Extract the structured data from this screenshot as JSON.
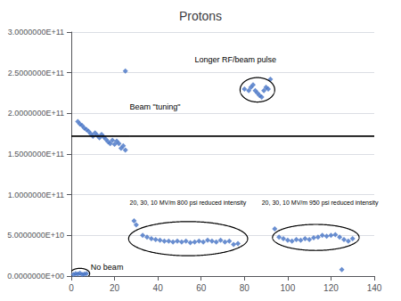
{
  "chart_data": {
    "type": "scatter",
    "title": "Protons",
    "color": "#4472C4",
    "marker": "diamond",
    "grid": true,
    "xlim": [
      0,
      140
    ],
    "ylim": [
      0,
      300000000000.0
    ],
    "xticks": [
      0,
      20,
      40,
      60,
      80,
      100,
      120,
      140
    ],
    "yticks": [
      {
        "value": 0.0,
        "label": "0.0000000E+00"
      },
      {
        "value": 50000000000.0,
        "label": "5.0000000E+10"
      },
      {
        "value": 100000000000.0,
        "label": "1.0000000E+11"
      },
      {
        "value": 150000000000.0,
        "label": "1.5000000E+11"
      },
      {
        "value": 200000000000.0,
        "label": "2.0000000E+11"
      },
      {
        "value": 250000000000.0,
        "label": "2.5000000E+11"
      },
      {
        "value": 300000000000.0,
        "label": "3.0000000E+11"
      }
    ],
    "series": [
      {
        "x": [
          1,
          2,
          3,
          4,
          5,
          6,
          7
        ],
        "values": [
          2000000000.0,
          3000000000.0,
          2500000000.0,
          3500000000.0,
          2000000000.0,
          2500000000.0,
          3000000000.0
        ]
      },
      {
        "x": [
          3,
          4,
          5,
          6,
          7,
          8,
          9,
          10,
          11,
          12,
          13,
          14,
          15,
          16,
          17,
          18,
          19,
          20,
          21,
          22,
          23,
          24,
          25
        ],
        "values": [
          190000000000.0,
          187000000000.0,
          185000000000.0,
          182000000000.0,
          180000000000.0,
          178000000000.0,
          175000000000.0,
          172000000000.0,
          176000000000.0,
          173000000000.0,
          170000000000.0,
          174000000000.0,
          171000000000.0,
          168000000000.0,
          165000000000.0,
          163000000000.0,
          167000000000.0,
          162000000000.0,
          166000000000.0,
          163000000000.0,
          157000000000.0,
          160000000000.0,
          155000000000.0
        ]
      },
      {
        "x": [
          25
        ],
        "values": [
          252000000000.0
        ]
      },
      {
        "x": [
          80,
          82,
          83,
          84,
          85,
          86,
          87,
          88,
          89,
          90,
          91,
          92
        ],
        "values": [
          230000000000.0,
          228000000000.0,
          232000000000.0,
          235000000000.0,
          228000000000.0,
          225000000000.0,
          222000000000.0,
          220000000000.0,
          228000000000.0,
          232000000000.0,
          230000000000.0,
          242000000000.0
        ]
      },
      {
        "x": [
          29,
          30,
          33,
          35,
          37,
          39,
          41,
          43,
          45,
          47,
          49,
          51,
          53,
          55,
          57,
          59,
          61,
          63,
          65,
          67,
          69,
          71,
          73,
          75,
          77
        ],
        "values": [
          68000000000.0,
          63000000000.0,
          50000000000.0,
          48000000000.0,
          46000000000.0,
          45000000000.0,
          44000000000.0,
          43000000000.0,
          43000000000.0,
          42000000000.0,
          43000000000.0,
          42000000000.0,
          43000000000.0,
          41000000000.0,
          42000000000.0,
          43000000000.0,
          42000000000.0,
          44000000000.0,
          43000000000.0,
          42000000000.0,
          44000000000.0,
          42000000000.0,
          43000000000.0,
          39000000000.0,
          40000000000.0
        ]
      },
      {
        "x": [
          94,
          96,
          98,
          100,
          102,
          104,
          106,
          108,
          110,
          112,
          114,
          116,
          118,
          120,
          122,
          124,
          126,
          128,
          130
        ],
        "values": [
          58000000000.0,
          48000000000.0,
          46000000000.0,
          44000000000.0,
          43000000000.0,
          45000000000.0,
          44000000000.0,
          46000000000.0,
          45000000000.0,
          47000000000.0,
          48000000000.0,
          50000000000.0,
          49000000000.0,
          50000000000.0,
          51000000000.0,
          48000000000.0,
          45000000000.0,
          43000000000.0,
          46000000000.0
        ]
      },
      {
        "x": [
          125
        ],
        "values": [
          8000000000.0
        ]
      }
    ],
    "ellipses": {
      "color": "#000000",
      "items": [
        {
          "cx": 14,
          "cy": 172000000000.0,
          "w": 26,
          "h": 60000000000.0,
          "angle": -3
        },
        {
          "cx": 86,
          "cy": 229000000000.0,
          "w": 16,
          "h": 30000000000.0,
          "angle": 0
        },
        {
          "cx": 54,
          "cy": 46000000000.0,
          "w": 55,
          "h": 42000000000.0,
          "angle": 0
        },
        {
          "cx": 113,
          "cy": 47500000000.0,
          "w": 40,
          "h": 32000000000.0,
          "angle": 0
        },
        {
          "cx": 4,
          "cy": 3000000000.0,
          "w": 9,
          "h": 13000000000.0,
          "angle": 0
        }
      ]
    },
    "annotations": [
      {
        "text": "Beam \"tuning\"",
        "x": 27,
        "y": 203000000000.0
      },
      {
        "text": "Longer RF/beam pulse",
        "x": 57,
        "y": 261000000000.0
      },
      {
        "text": "20, 30, 10 MV/m 800 psi reduced intensity",
        "x": 27,
        "y": 87000000000.0
      },
      {
        "text": "20, 30, 10 MV/m 950 psi reduced intensity",
        "x": 88,
        "y": 87000000000.0
      },
      {
        "text": "No beam",
        "x": 9,
        "y": 6500000000.0
      }
    ]
  }
}
